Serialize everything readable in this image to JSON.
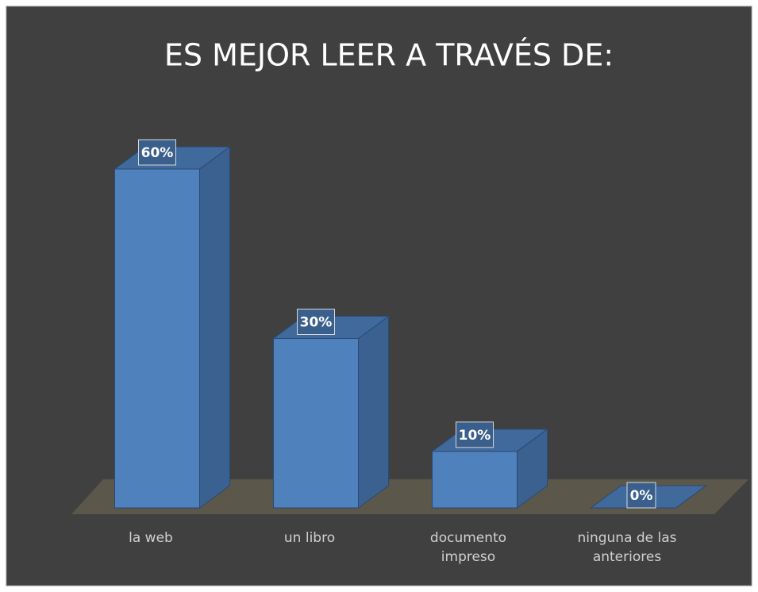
{
  "chart_data": {
    "type": "bar3d",
    "title": "ES MEJOR LEER A TRAVÉS DE:",
    "categories": [
      "la web",
      "un libro",
      "documento impreso",
      "ninguna de las anteriores"
    ],
    "values": [
      60,
      30,
      10,
      0
    ],
    "value_labels": [
      "60%",
      "30%",
      "10%",
      "0%"
    ],
    "color": "#4f81bd"
  }
}
